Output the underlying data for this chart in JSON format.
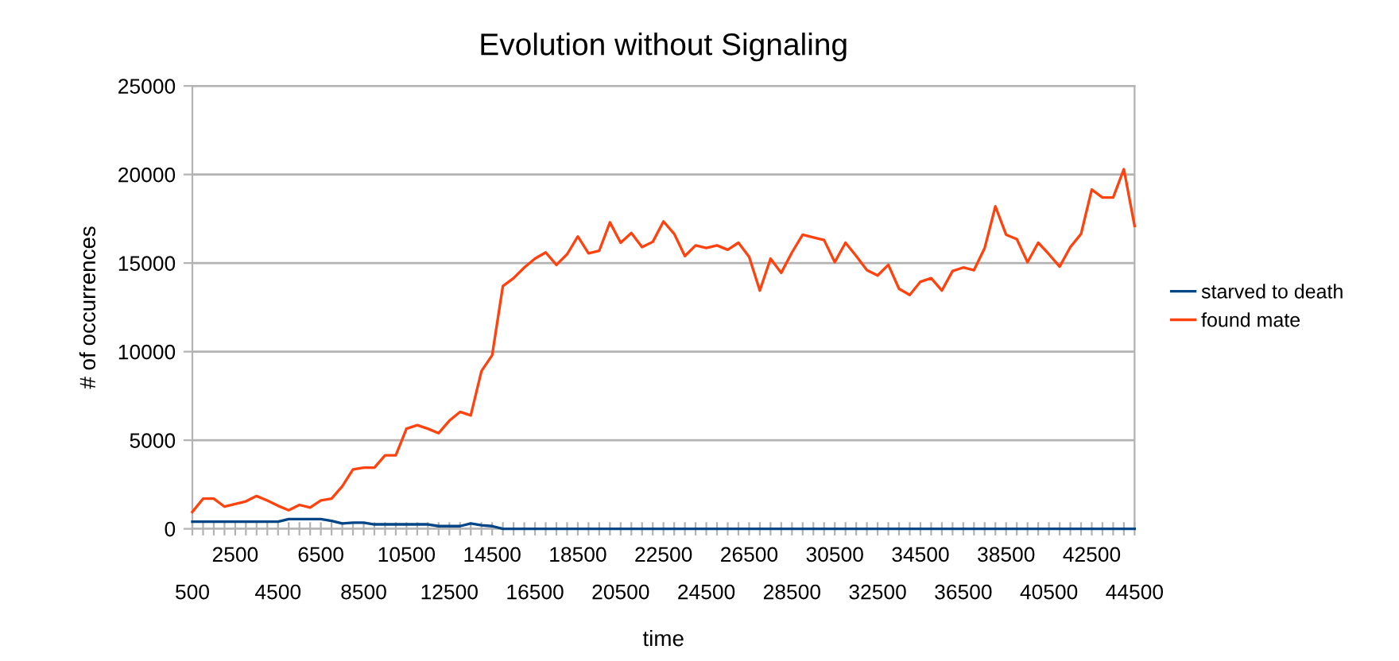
{
  "chart_data": {
    "type": "line",
    "title": "Evolution without Signaling",
    "xlabel": "time",
    "ylabel": "# of occurrences",
    "categories": [
      "500",
      null,
      null,
      null,
      "2500",
      null,
      null,
      null,
      "4500",
      null,
      null,
      null,
      "6500",
      null,
      null,
      null,
      "8500",
      null,
      null,
      null,
      "10500",
      null,
      null,
      null,
      "12500",
      null,
      null,
      null,
      "14500",
      null,
      null,
      null,
      "16500",
      null,
      null,
      null,
      "18500",
      null,
      null,
      null,
      "20500",
      null,
      null,
      null,
      "22500",
      null,
      null,
      null,
      "24500",
      null,
      null,
      null,
      "26500",
      null,
      null,
      null,
      "28500",
      null,
      null,
      null,
      "30500",
      null,
      null,
      null,
      "32500",
      null,
      null,
      null,
      "34500",
      null,
      null,
      null,
      "36500",
      null,
      null,
      null,
      "38500",
      null,
      null,
      null,
      "40500",
      null,
      null,
      null,
      "42500",
      null,
      null,
      null,
      "44500"
    ],
    "series": [
      {
        "name": "starved to death",
        "color": "#004586",
        "values": [
          400,
          400,
          400,
          400,
          400,
          400,
          400,
          400,
          400,
          550,
          550,
          550,
          550,
          450,
          300,
          350,
          350,
          250,
          250,
          250,
          250,
          250,
          250,
          150,
          150,
          150,
          300,
          200,
          150,
          0,
          0,
          0,
          0,
          0,
          0,
          0,
          0,
          0,
          0,
          0,
          0,
          0,
          0,
          0,
          0,
          0,
          0,
          0,
          0,
          0,
          0,
          0,
          0,
          0,
          0,
          0,
          0,
          0,
          0,
          0,
          0,
          0,
          0,
          0,
          0,
          0,
          0,
          0,
          0,
          0,
          0,
          0,
          0,
          0,
          0,
          0,
          0,
          0,
          0,
          0,
          0,
          0,
          0,
          0,
          0,
          0,
          0,
          0,
          0
        ]
      },
      {
        "name": "found mate",
        "color": "#ff420e",
        "values": [
          950,
          1700,
          1700,
          1250,
          1400,
          1550,
          1850,
          1600,
          1300,
          1050,
          1350,
          1200,
          1600,
          1700,
          2400,
          3350,
          3450,
          3450,
          4150,
          4150,
          5650,
          5850,
          5650,
          5400,
          6100,
          6600,
          6400,
          8900,
          9800,
          13700,
          14150,
          14750,
          15250,
          15600,
          14900,
          15500,
          16500,
          15550,
          15700,
          17300,
          16150,
          16700,
          15900,
          16200,
          17350,
          16650,
          15400,
          16000,
          15850,
          16000,
          15750,
          16150,
          15350,
          13450,
          15250,
          14450,
          15600,
          16600,
          16450,
          16300,
          15050,
          16150,
          15400,
          14600,
          14300,
          14900,
          13550,
          13200,
          13950,
          14150,
          13450,
          14550,
          14750,
          14600,
          15850,
          18200,
          16600,
          16350,
          15050,
          16150,
          15500,
          14800,
          15900,
          16650,
          19150,
          18700,
          18700,
          20300,
          17100
        ]
      }
    ],
    "ylim": [
      0,
      25000
    ],
    "yticks": [
      0,
      5000,
      10000,
      15000,
      20000,
      25000
    ],
    "grid": "y",
    "legend": "right",
    "marker": "none",
    "line_style": "solid"
  }
}
